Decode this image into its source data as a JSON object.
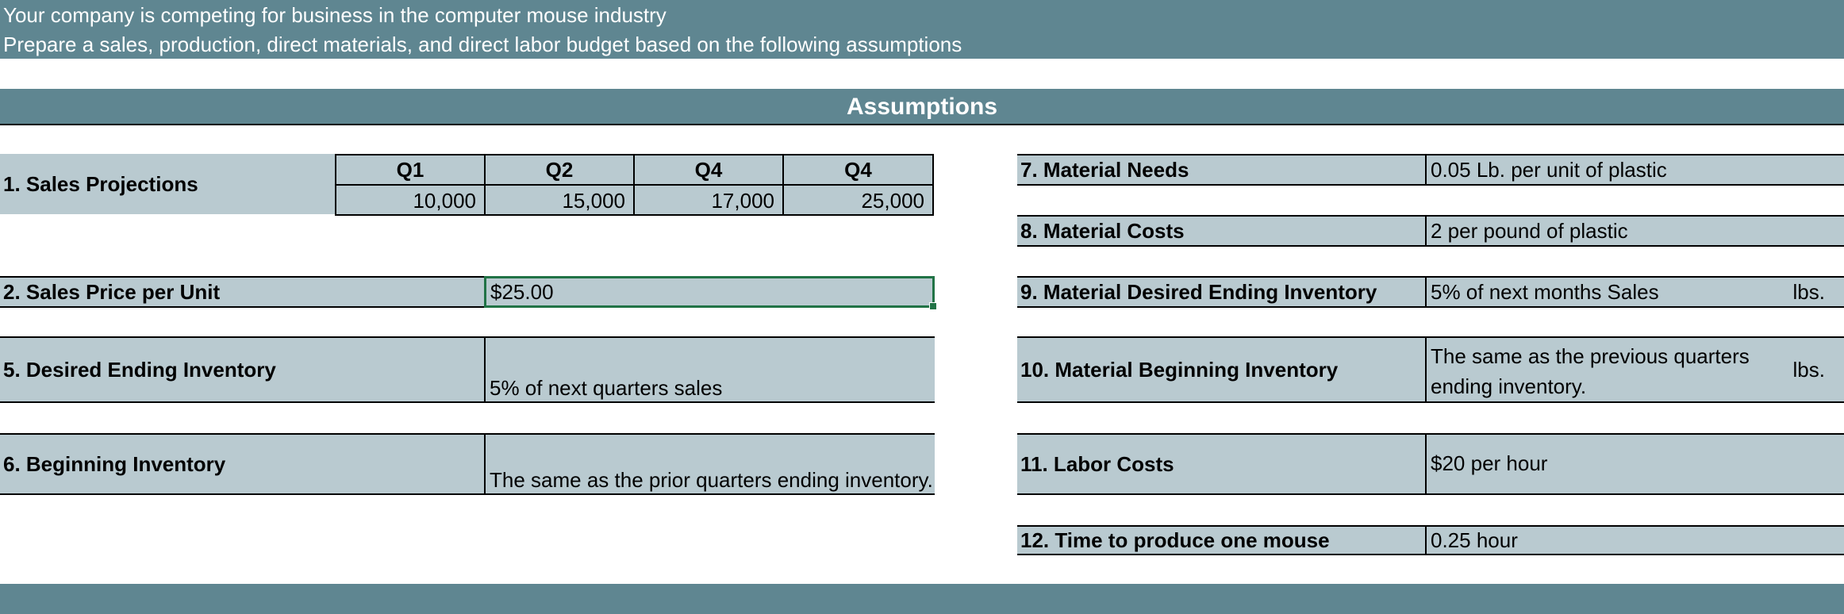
{
  "intro": {
    "line1": "Your company is competing for business in the computer mouse industry",
    "line2": "Prepare a sales, production, direct materials, and direct labor budget based on the following assumptions"
  },
  "section_title": "Assumptions",
  "left": {
    "sales_projections": {
      "label": "1. Sales Projections",
      "quarters": [
        {
          "header": "Q1",
          "value": "10,000"
        },
        {
          "header": "Q2",
          "value": "15,000"
        },
        {
          "header": "Q4",
          "value": "17,000"
        },
        {
          "header": "Q4",
          "value": "25,000"
        }
      ]
    },
    "sales_price": {
      "label": "2. Sales Price per Unit",
      "value": "$25.00"
    },
    "desired_ending_inventory": {
      "label": "5. Desired Ending Inventory",
      "value": "5% of next quarters sales"
    },
    "beginning_inventory": {
      "label": "6. Beginning Inventory",
      "value": "The same as the prior quarters ending inventory."
    }
  },
  "right": {
    "material_needs": {
      "label": "7. Material Needs",
      "value": "0.05 Lb. per unit of plastic"
    },
    "material_costs": {
      "label": "8. Material Costs",
      "value": "2 per pound of plastic"
    },
    "material_desired_ending_inventory": {
      "label": "9. Material Desired Ending Inventory",
      "value": "5% of next months Sales",
      "unit": "lbs."
    },
    "material_beginning_inventory": {
      "label": "10. Material Beginning Inventory",
      "value_line1": "The same as the previous quarters",
      "value_line2": "ending inventory.",
      "unit": "lbs."
    },
    "labor_costs": {
      "label": "11. Labor Costs",
      "value": "$20 per hour"
    },
    "time_to_produce": {
      "label": "12. Time to produce one mouse",
      "value": "0.25 hour"
    }
  }
}
